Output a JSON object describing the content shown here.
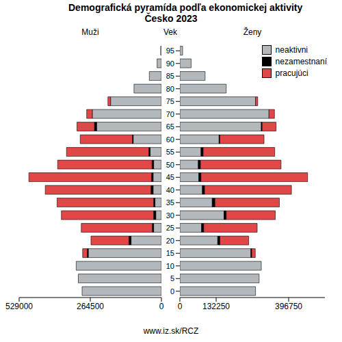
{
  "title": "Demografická pyramída podľa ekonomickej aktivity",
  "subtitle": "Česko 2023",
  "axis_label": "Vek",
  "source": "www.iz.sk/RCZ",
  "chart_data": [
    {
      "type": "bar",
      "orientation": "horizontal",
      "stacked": true,
      "title": "Muži",
      "categories": [
        "0",
        "5",
        "10",
        "15",
        "20",
        "25",
        "30",
        "35",
        "40",
        "45",
        "50",
        "55",
        "60",
        "65",
        "70",
        "75",
        "80",
        "85",
        "90",
        "95"
      ],
      "xlim": [
        529000,
        0
      ],
      "xticks": [
        529000,
        264500,
        0
      ],
      "series": [
        {
          "name": "neaktivni",
          "color": "#b3b8bd",
          "values": [
            295000,
            309000,
            317000,
            272000,
            113000,
            29000,
            21000,
            24000,
            31000,
            31000,
            29000,
            42000,
            105000,
            241000,
            257000,
            189000,
            102000,
            45000,
            16000,
            3000
          ]
        },
        {
          "name": "nezamestnaní",
          "color": "#000000",
          "values": [
            0,
            0,
            0,
            4000,
            8000,
            5000,
            8000,
            5000,
            8000,
            6000,
            6000,
            5000,
            3000,
            8000,
            0,
            0,
            0,
            0,
            0,
            0
          ]
        },
        {
          "name": "pracujúci",
          "color": "#e04848",
          "values": [
            0,
            0,
            0,
            17000,
            141000,
            264000,
            343000,
            359000,
            393000,
            456000,
            351000,
            306000,
            194000,
            65000,
            21000,
            10000,
            0,
            0,
            0,
            0
          ]
        }
      ]
    },
    {
      "type": "bar",
      "orientation": "horizontal",
      "stacked": true,
      "title": "Ženy",
      "legend": "upper right",
      "categories": [
        "0",
        "5",
        "10",
        "15",
        "20",
        "25",
        "30",
        "35",
        "40",
        "45",
        "50",
        "55",
        "60",
        "65",
        "70",
        "75",
        "80",
        "85",
        "90",
        "95"
      ],
      "xlim": [
        0,
        529000
      ],
      "xticks": [
        0,
        132250,
        396750
      ],
      "series": [
        {
          "name": "neaktivni",
          "color": "#b3b8bd",
          "values": [
            276000,
            289000,
            297000,
            259000,
            138000,
            79000,
            161000,
            118000,
            82000,
            69000,
            67000,
            77000,
            143000,
            297000,
            325000,
            276000,
            169000,
            92000,
            41000,
            10000
          ]
        },
        {
          "name": "nezamestnaní",
          "color": "#000000",
          "values": [
            0,
            0,
            0,
            3000,
            8000,
            8000,
            8000,
            10000,
            8000,
            8000,
            8000,
            8000,
            3000,
            3000,
            0,
            0,
            0,
            0,
            0,
            0
          ]
        },
        {
          "name": "pracujúci",
          "color": "#e04848",
          "values": [
            0,
            0,
            0,
            13000,
            105000,
            195000,
            179000,
            235000,
            317000,
            389000,
            294000,
            261000,
            161000,
            51000,
            20000,
            8000,
            0,
            0,
            0,
            0
          ]
        }
      ]
    }
  ]
}
